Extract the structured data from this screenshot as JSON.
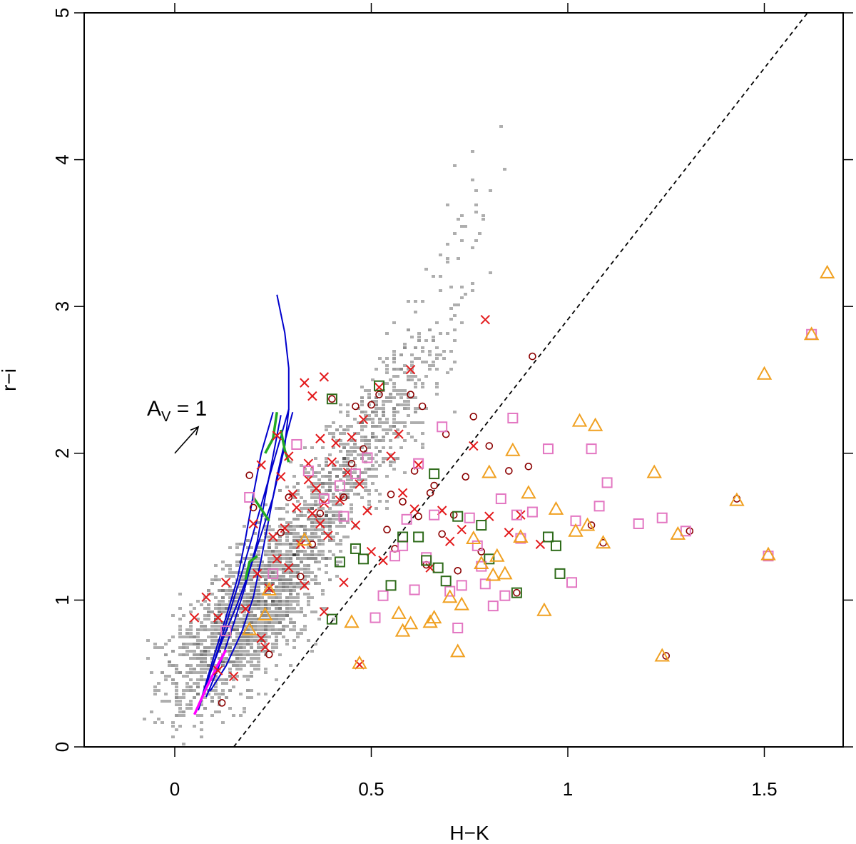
{
  "chart_data": {
    "type": "scatter",
    "title": "",
    "xlabel": "H−K",
    "ylabel": "r−i",
    "xlim": [
      -0.2,
      1.7
    ],
    "ylim": [
      0,
      5
    ],
    "x_ticks": [
      {
        "value": 0,
        "label": "0"
      },
      {
        "value": 0.5,
        "label": "0.5"
      },
      {
        "value": 1,
        "label": "1"
      },
      {
        "value": 1.5,
        "label": "1.5"
      }
    ],
    "y_ticks": [
      {
        "value": 0,
        "label": "0"
      },
      {
        "value": 1,
        "label": "1"
      },
      {
        "value": 2,
        "label": "2"
      },
      {
        "value": 3,
        "label": "3"
      },
      {
        "value": 4,
        "label": "4"
      },
      {
        "value": 5,
        "label": "5"
      }
    ],
    "colors": {
      "density": "#7f7f7f",
      "cross": "#e31a1c",
      "circle": "#8b0000",
      "square_pink": "#e377c2",
      "square_green": "#2e6b1a",
      "triangle": "#f0a020",
      "track_blue": "#0000cc",
      "track_green": "#22aa22",
      "track_magenta": "#ff00ff",
      "dashed_line": "#000000"
    },
    "reddening_vector": {
      "label_main": "A",
      "label_sub": "V",
      "label_rest": " = 1",
      "from": [
        0,
        2.0
      ],
      "to": [
        0.06,
        2.18
      ]
    },
    "dashed_line": {
      "from": [
        0.15,
        0
      ],
      "to": [
        1.61,
        5
      ]
    },
    "density_field": [
      [
        0.1,
        0.75,
        1.0
      ],
      [
        0.15,
        0.85,
        1.0
      ],
      [
        0.2,
        1.0,
        0.9
      ],
      [
        0.25,
        1.15,
        0.85
      ],
      [
        0.3,
        1.35,
        0.7
      ],
      [
        0.35,
        1.55,
        0.65
      ],
      [
        0.4,
        1.75,
        0.6
      ],
      [
        0.45,
        1.95,
        0.5
      ],
      [
        0.5,
        2.15,
        0.45
      ],
      [
        0.55,
        2.35,
        0.35
      ],
      [
        0.6,
        2.6,
        0.25
      ],
      [
        0.65,
        2.9,
        0.15
      ],
      [
        0.7,
        3.3,
        0.08
      ],
      [
        0.75,
        3.8,
        0.04
      ],
      [
        0.05,
        0.6,
        0.6
      ],
      [
        0.18,
        0.7,
        0.7
      ],
      [
        0.28,
        1.0,
        0.55
      ]
    ],
    "series": [
      {
        "name": "",
        "marker": "cross",
        "points": [
          [
            0.05,
            0.88
          ],
          [
            0.08,
            1.02
          ],
          [
            0.11,
            0.52
          ],
          [
            0.11,
            0.88
          ],
          [
            0.13,
            1.12
          ],
          [
            0.15,
            0.48
          ],
          [
            0.18,
            0.94
          ],
          [
            0.21,
            1.18
          ],
          [
            0.22,
            0.74
          ],
          [
            0.23,
            0.68
          ],
          [
            0.24,
            1.08
          ],
          [
            0.25,
            1.43
          ],
          [
            0.26,
            1.28
          ],
          [
            0.27,
            1.84
          ],
          [
            0.28,
            1.49
          ],
          [
            0.29,
            1.22
          ],
          [
            0.3,
            1.72
          ],
          [
            0.31,
            1.63
          ],
          [
            0.32,
            1.38
          ],
          [
            0.33,
            1.1
          ],
          [
            0.33,
            2.48
          ],
          [
            0.34,
            1.93
          ],
          [
            0.35,
            1.59
          ],
          [
            0.35,
            2.39
          ],
          [
            0.36,
            1.76
          ],
          [
            0.37,
            1.52
          ],
          [
            0.37,
            2.1
          ],
          [
            0.38,
            2.52
          ],
          [
            0.38,
            1.66
          ],
          [
            0.39,
            1.44
          ],
          [
            0.4,
            1.94
          ],
          [
            0.41,
            2.07
          ],
          [
            0.42,
            1.68
          ],
          [
            0.43,
            1.12
          ],
          [
            0.44,
            1.87
          ],
          [
            0.45,
            2.11
          ],
          [
            0.46,
            1.51
          ],
          [
            0.47,
            1.79
          ],
          [
            0.48,
            2.23
          ],
          [
            0.49,
            1.61
          ],
          [
            0.5,
            1.33
          ],
          [
            0.52,
            2.45
          ],
          [
            0.53,
            1.27
          ],
          [
            0.55,
            1.98
          ],
          [
            0.57,
            2.13
          ],
          [
            0.58,
            1.73
          ],
          [
            0.6,
            2.57
          ],
          [
            0.61,
            1.62
          ],
          [
            0.62,
            1.92
          ],
          [
            0.65,
            1.22
          ],
          [
            0.68,
            1.61
          ],
          [
            0.7,
            1.4
          ],
          [
            0.73,
            1.48
          ],
          [
            0.76,
            2.05
          ],
          [
            0.79,
            2.91
          ],
          [
            0.8,
            1.57
          ],
          [
            0.85,
            1.46
          ],
          [
            0.88,
            1.58
          ],
          [
            0.93,
            1.38
          ],
          [
            0.47,
            0.56
          ],
          [
            0.38,
            0.92
          ],
          [
            0.2,
            1.52
          ],
          [
            0.22,
            1.92
          ],
          [
            0.26,
            2.12
          ],
          [
            0.29,
            1.98
          ],
          [
            0.34,
            1.82
          ]
        ]
      },
      {
        "name": "",
        "marker": "circle",
        "points": [
          [
            0.12,
            0.3
          ],
          [
            0.19,
            1.85
          ],
          [
            0.2,
            1.63
          ],
          [
            0.24,
            0.63
          ],
          [
            0.27,
            1.46
          ],
          [
            0.29,
            1.7
          ],
          [
            0.32,
            1.16
          ],
          [
            0.35,
            1.38
          ],
          [
            0.37,
            1.59
          ],
          [
            0.4,
            2.37
          ],
          [
            0.43,
            1.7
          ],
          [
            0.45,
            1.93
          ],
          [
            0.46,
            2.32
          ],
          [
            0.48,
            2.03
          ],
          [
            0.5,
            2.33
          ],
          [
            0.52,
            2.4
          ],
          [
            0.54,
            1.48
          ],
          [
            0.55,
            1.72
          ],
          [
            0.56,
            1.35
          ],
          [
            0.58,
            1.67
          ],
          [
            0.6,
            2.4
          ],
          [
            0.61,
            1.88
          ],
          [
            0.62,
            1.57
          ],
          [
            0.63,
            2.32
          ],
          [
            0.64,
            1.24
          ],
          [
            0.65,
            1.73
          ],
          [
            0.66,
            1.78
          ],
          [
            0.68,
            1.45
          ],
          [
            0.69,
            2.13
          ],
          [
            0.71,
            1.58
          ],
          [
            0.72,
            1.2
          ],
          [
            0.74,
            1.84
          ],
          [
            0.76,
            2.25
          ],
          [
            0.78,
            1.33
          ],
          [
            0.8,
            2.05
          ],
          [
            0.85,
            1.88
          ],
          [
            0.87,
            1.05
          ],
          [
            0.9,
            1.91
          ],
          [
            0.91,
            2.66
          ],
          [
            1.06,
            1.51
          ],
          [
            1.09,
            1.39
          ],
          [
            1.31,
            1.47
          ],
          [
            1.43,
            1.69
          ],
          [
            1.25,
            0.62
          ]
        ]
      },
      {
        "name": "",
        "marker": "square_pink",
        "points": [
          [
            0.13,
            0.79
          ],
          [
            0.19,
            1.7
          ],
          [
            0.25,
            1.18
          ],
          [
            0.31,
            2.06
          ],
          [
            0.34,
            1.88
          ],
          [
            0.38,
            1.69
          ],
          [
            0.42,
            1.78
          ],
          [
            0.43,
            1.57
          ],
          [
            0.46,
            1.86
          ],
          [
            0.49,
            1.97
          ],
          [
            0.51,
            0.88
          ],
          [
            0.53,
            1.03
          ],
          [
            0.56,
            1.3
          ],
          [
            0.58,
            1.37
          ],
          [
            0.59,
            1.55
          ],
          [
            0.61,
            1.07
          ],
          [
            0.62,
            1.93
          ],
          [
            0.64,
            1.29
          ],
          [
            0.66,
            1.58
          ],
          [
            0.68,
            2.18
          ],
          [
            0.7,
            1.06
          ],
          [
            0.72,
            0.81
          ],
          [
            0.73,
            1.1
          ],
          [
            0.75,
            1.56
          ],
          [
            0.77,
            1.37
          ],
          [
            0.79,
            1.11
          ],
          [
            0.81,
            0.96
          ],
          [
            0.83,
            1.69
          ],
          [
            0.84,
            1.03
          ],
          [
            0.86,
            2.24
          ],
          [
            0.87,
            1.58
          ],
          [
            0.88,
            1.42
          ],
          [
            0.91,
            1.6
          ],
          [
            0.95,
            2.03
          ],
          [
            1.01,
            1.12
          ],
          [
            1.02,
            1.54
          ],
          [
            1.06,
            2.03
          ],
          [
            1.08,
            1.64
          ],
          [
            1.1,
            1.8
          ],
          [
            1.18,
            1.52
          ],
          [
            1.24,
            1.56
          ],
          [
            1.3,
            1.47
          ],
          [
            1.51,
            1.3
          ],
          [
            1.62,
            2.81
          ],
          [
            0.78,
            1.23
          ]
        ]
      },
      {
        "name": "",
        "marker": "square_green",
        "points": [
          [
            0.4,
            0.87
          ],
          [
            0.42,
            1.26
          ],
          [
            0.46,
            1.35
          ],
          [
            0.48,
            1.28
          ],
          [
            0.52,
            2.46
          ],
          [
            0.55,
            1.1
          ],
          [
            0.58,
            1.43
          ],
          [
            0.62,
            1.43
          ],
          [
            0.64,
            1.27
          ],
          [
            0.66,
            1.86
          ],
          [
            0.67,
            1.22
          ],
          [
            0.69,
            1.13
          ],
          [
            0.72,
            1.57
          ],
          [
            0.78,
            1.51
          ],
          [
            0.8,
            1.28
          ],
          [
            0.87,
            1.05
          ],
          [
            0.95,
            1.43
          ],
          [
            0.97,
            1.37
          ],
          [
            0.98,
            1.18
          ],
          [
            0.4,
            2.37
          ]
        ]
      },
      {
        "name": "",
        "marker": "triangle",
        "points": [
          [
            0.19,
            0.8
          ],
          [
            0.23,
            0.9
          ],
          [
            0.24,
            1.07
          ],
          [
            0.33,
            1.41
          ],
          [
            0.45,
            0.85
          ],
          [
            0.47,
            0.57
          ],
          [
            0.57,
            0.91
          ],
          [
            0.58,
            0.79
          ],
          [
            0.6,
            0.84
          ],
          [
            0.65,
            0.85
          ],
          [
            0.66,
            0.88
          ],
          [
            0.7,
            1.02
          ],
          [
            0.72,
            0.65
          ],
          [
            0.73,
            0.97
          ],
          [
            0.76,
            1.42
          ],
          [
            0.78,
            1.25
          ],
          [
            0.8,
            1.87
          ],
          [
            0.82,
            1.3
          ],
          [
            0.84,
            1.18
          ],
          [
            0.86,
            2.02
          ],
          [
            0.88,
            1.43
          ],
          [
            0.9,
            1.73
          ],
          [
            0.94,
            0.93
          ],
          [
            0.97,
            1.62
          ],
          [
            1.03,
            2.22
          ],
          [
            1.05,
            1.51
          ],
          [
            1.07,
            2.19
          ],
          [
            1.09,
            1.39
          ],
          [
            1.22,
            1.87
          ],
          [
            1.28,
            1.45
          ],
          [
            1.5,
            2.54
          ],
          [
            1.66,
            3.23
          ],
          [
            1.24,
            0.62
          ],
          [
            1.43,
            1.68
          ],
          [
            1.51,
            1.31
          ],
          [
            1.62,
            2.81
          ],
          [
            1.02,
            1.47
          ],
          [
            0.81,
            1.17
          ]
        ]
      }
    ],
    "tracks": {
      "blue": [
        [
          [
            0.26,
            3.08
          ],
          [
            0.28,
            2.82
          ],
          [
            0.29,
            2.58
          ],
          [
            0.29,
            2.3
          ],
          [
            0.28,
            2.05
          ],
          [
            0.25,
            1.7
          ],
          [
            0.22,
            1.45
          ],
          [
            0.19,
            1.2
          ],
          [
            0.16,
            0.98
          ],
          [
            0.12,
            0.72
          ],
          [
            0.09,
            0.5
          ],
          [
            0.06,
            0.26
          ]
        ],
        [
          [
            0.29,
            2.3
          ],
          [
            0.26,
            2.02
          ],
          [
            0.23,
            1.74
          ],
          [
            0.2,
            1.46
          ],
          [
            0.17,
            1.18
          ],
          [
            0.14,
            0.92
          ],
          [
            0.11,
            0.66
          ],
          [
            0.08,
            0.42
          ],
          [
            0.06,
            0.25
          ]
        ],
        [
          [
            0.25,
            2.28
          ],
          [
            0.22,
            2.0
          ],
          [
            0.2,
            1.72
          ],
          [
            0.18,
            1.42
          ],
          [
            0.16,
            1.15
          ],
          [
            0.13,
            0.88
          ],
          [
            0.1,
            0.62
          ],
          [
            0.07,
            0.35
          ]
        ],
        [
          [
            0.27,
            2.26
          ],
          [
            0.25,
            1.98
          ],
          [
            0.23,
            1.7
          ],
          [
            0.21,
            1.4
          ],
          [
            0.18,
            1.1
          ],
          [
            0.15,
            0.84
          ],
          [
            0.12,
            0.6
          ],
          [
            0.08,
            0.34
          ]
        ],
        [
          [
            0.3,
            2.28
          ],
          [
            0.28,
            2.08
          ],
          [
            0.26,
            1.84
          ],
          [
            0.24,
            1.56
          ],
          [
            0.22,
            1.28
          ],
          [
            0.2,
            1.02
          ],
          [
            0.17,
            0.78
          ],
          [
            0.13,
            0.55
          ],
          [
            0.09,
            0.38
          ]
        ]
      ],
      "green": [
        [
          [
            0.26,
            2.28
          ],
          [
            0.25,
            2.1
          ],
          [
            0.23,
            2.0
          ]
        ],
        [
          [
            0.27,
            2.16
          ],
          [
            0.28,
            2.02
          ],
          [
            0.29,
            1.94
          ]
        ],
        [
          [
            0.2,
            1.7
          ],
          [
            0.22,
            1.62
          ],
          [
            0.24,
            1.54
          ]
        ],
        [
          [
            0.18,
            1.14
          ],
          [
            0.19,
            1.26
          ],
          [
            0.21,
            1.3
          ]
        ]
      ],
      "magenta": [
        [
          [
            0.05,
            0.22
          ],
          [
            0.08,
            0.4
          ],
          [
            0.11,
            0.56
          ],
          [
            0.13,
            0.66
          ]
        ]
      ]
    }
  }
}
